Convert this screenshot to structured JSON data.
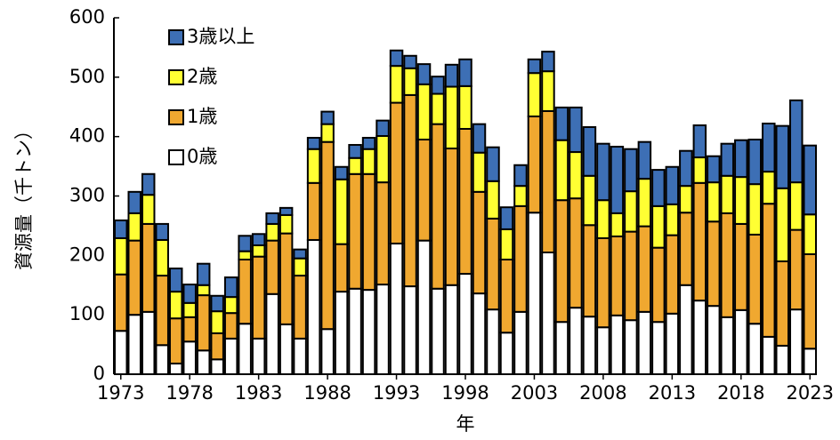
{
  "chart_data": {
    "type": "stacked_bar",
    "x_label": "年",
    "y_label": "資源量（千トン）",
    "categories": [
      "1973",
      null,
      null,
      null,
      null,
      "1978",
      null,
      null,
      null,
      null,
      "1983",
      null,
      null,
      null,
      null,
      "1988",
      null,
      null,
      null,
      null,
      "1993",
      null,
      null,
      null,
      null,
      "1998",
      null,
      null,
      null,
      null,
      "2003",
      null,
      null,
      null,
      null,
      "2008",
      null,
      null,
      null,
      null,
      "2013",
      null,
      null,
      null,
      null,
      "2018",
      null,
      null,
      null,
      null,
      "2023"
    ],
    "series": [
      {
        "name": "0歳",
        "color": "#ffffff",
        "values": [
          73,
          100,
          105,
          49,
          18,
          55,
          40,
          25,
          60,
          85,
          60,
          135,
          84,
          60,
          226,
          76,
          139,
          144,
          142,
          151,
          220,
          148,
          225,
          144,
          150,
          169,
          136,
          109,
          70,
          105,
          272,
          205,
          88,
          112,
          97,
          79,
          99,
          91,
          105,
          88,
          102,
          150,
          124,
          115,
          96,
          108,
          85,
          63,
          48,
          109,
          43
        ]
      },
      {
        "name": "1歳",
        "color": "#f0a830",
        "values": [
          95,
          125,
          148,
          117,
          76,
          41,
          93,
          44,
          43,
          108,
          138,
          90,
          153,
          106,
          96,
          315,
          80,
          193,
          195,
          172,
          237,
          322,
          170,
          277,
          230,
          244,
          171,
          153,
          123,
          178,
          162,
          238,
          205,
          184,
          154,
          150,
          133,
          149,
          144,
          125,
          132,
          122,
          198,
          142,
          175,
          145,
          150,
          224,
          142,
          134,
          159
        ]
      },
      {
        "name": "2歳",
        "color": "#ffff33",
        "values": [
          61,
          46,
          49,
          60,
          45,
          24,
          17,
          37,
          27,
          14,
          19,
          28,
          31,
          29,
          57,
          30,
          109,
          27,
          42,
          78,
          62,
          45,
          93,
          51,
          104,
          72,
          66,
          63,
          51,
          34,
          73,
          67,
          101,
          78,
          83,
          64,
          39,
          68,
          80,
          70,
          52,
          45,
          43,
          66,
          63,
          79,
          85,
          54,
          123,
          80,
          67
        ]
      },
      {
        "name": "3歳以上",
        "color": "#3d6fb5",
        "values": [
          30,
          36,
          35,
          27,
          39,
          31,
          36,
          26,
          33,
          26,
          19,
          18,
          12,
          15,
          19,
          21,
          21,
          22,
          19,
          26,
          26,
          21,
          34,
          29,
          37,
          45,
          48,
          57,
          37,
          35,
          23,
          33,
          55,
          75,
          82,
          95,
          112,
          71,
          62,
          61,
          63,
          59,
          54,
          44,
          54,
          62,
          75,
          81,
          105,
          138,
          116
        ]
      }
    ],
    "ylim": [
      0,
      600
    ],
    "yticks": [
      0,
      100,
      200,
      300,
      400,
      500,
      600
    ],
    "grid": false,
    "legend": "top-left"
  }
}
